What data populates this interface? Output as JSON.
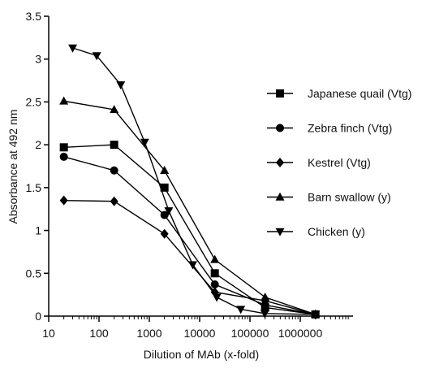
{
  "chart_data": {
    "type": "line",
    "title": "",
    "xlabel": "Dilution of MAb (x-fold)",
    "ylabel": "Absorbance at  492 nm",
    "x_scale": "log",
    "xlim": [
      10,
      1000000
    ],
    "ylim": [
      0,
      3.5
    ],
    "x_tick_labels": [
      "10",
      "100",
      "1000",
      "10000",
      "100000",
      "1000000"
    ],
    "y_ticks": [
      "0",
      "0.5",
      "1",
      "1.5",
      "2",
      "2.5",
      "3",
      "3.5"
    ],
    "grid": false,
    "legend_position": "right",
    "line_color": "#000000",
    "series": [
      {
        "name": "Japanese quail (Vtg)",
        "marker": "square",
        "points": [
          [
            20,
            1.97
          ],
          [
            200,
            2.0
          ],
          [
            2000,
            1.5
          ],
          [
            20000,
            0.5
          ],
          [
            200000,
            0.1
          ],
          [
            2000000,
            0.02
          ]
        ]
      },
      {
        "name": "Zebra finch (Vtg)",
        "marker": "circle",
        "points": [
          [
            20,
            1.86
          ],
          [
            200,
            1.7
          ],
          [
            2000,
            1.18
          ],
          [
            20000,
            0.37
          ],
          [
            200000,
            0.13
          ],
          [
            2000000,
            0.02
          ]
        ]
      },
      {
        "name": "Kestrel (Vtg)",
        "marker": "diamond",
        "points": [
          [
            20,
            1.35
          ],
          [
            200,
            1.34
          ],
          [
            2000,
            0.96
          ],
          [
            20000,
            0.28
          ],
          [
            200000,
            0.18
          ],
          [
            2000000,
            0.02
          ]
        ]
      },
      {
        "name": "Barn swallow (y)",
        "marker": "triangle-up",
        "points": [
          [
            20,
            2.51
          ],
          [
            200,
            2.41
          ],
          [
            2000,
            1.7
          ],
          [
            20000,
            0.66
          ],
          [
            200000,
            0.22
          ],
          [
            2000000,
            0.02
          ]
        ]
      },
      {
        "name": "Chicken (y)",
        "marker": "triangle-down",
        "points": [
          [
            30,
            3.13
          ],
          [
            90,
            3.04
          ],
          [
            270,
            2.7
          ],
          [
            810,
            2.03
          ],
          [
            2430,
            1.23
          ],
          [
            7290,
            0.6
          ],
          [
            21870,
            0.22
          ],
          [
            65610,
            0.08
          ],
          [
            196830,
            0.03
          ],
          [
            2000000,
            0.02
          ]
        ]
      }
    ]
  }
}
